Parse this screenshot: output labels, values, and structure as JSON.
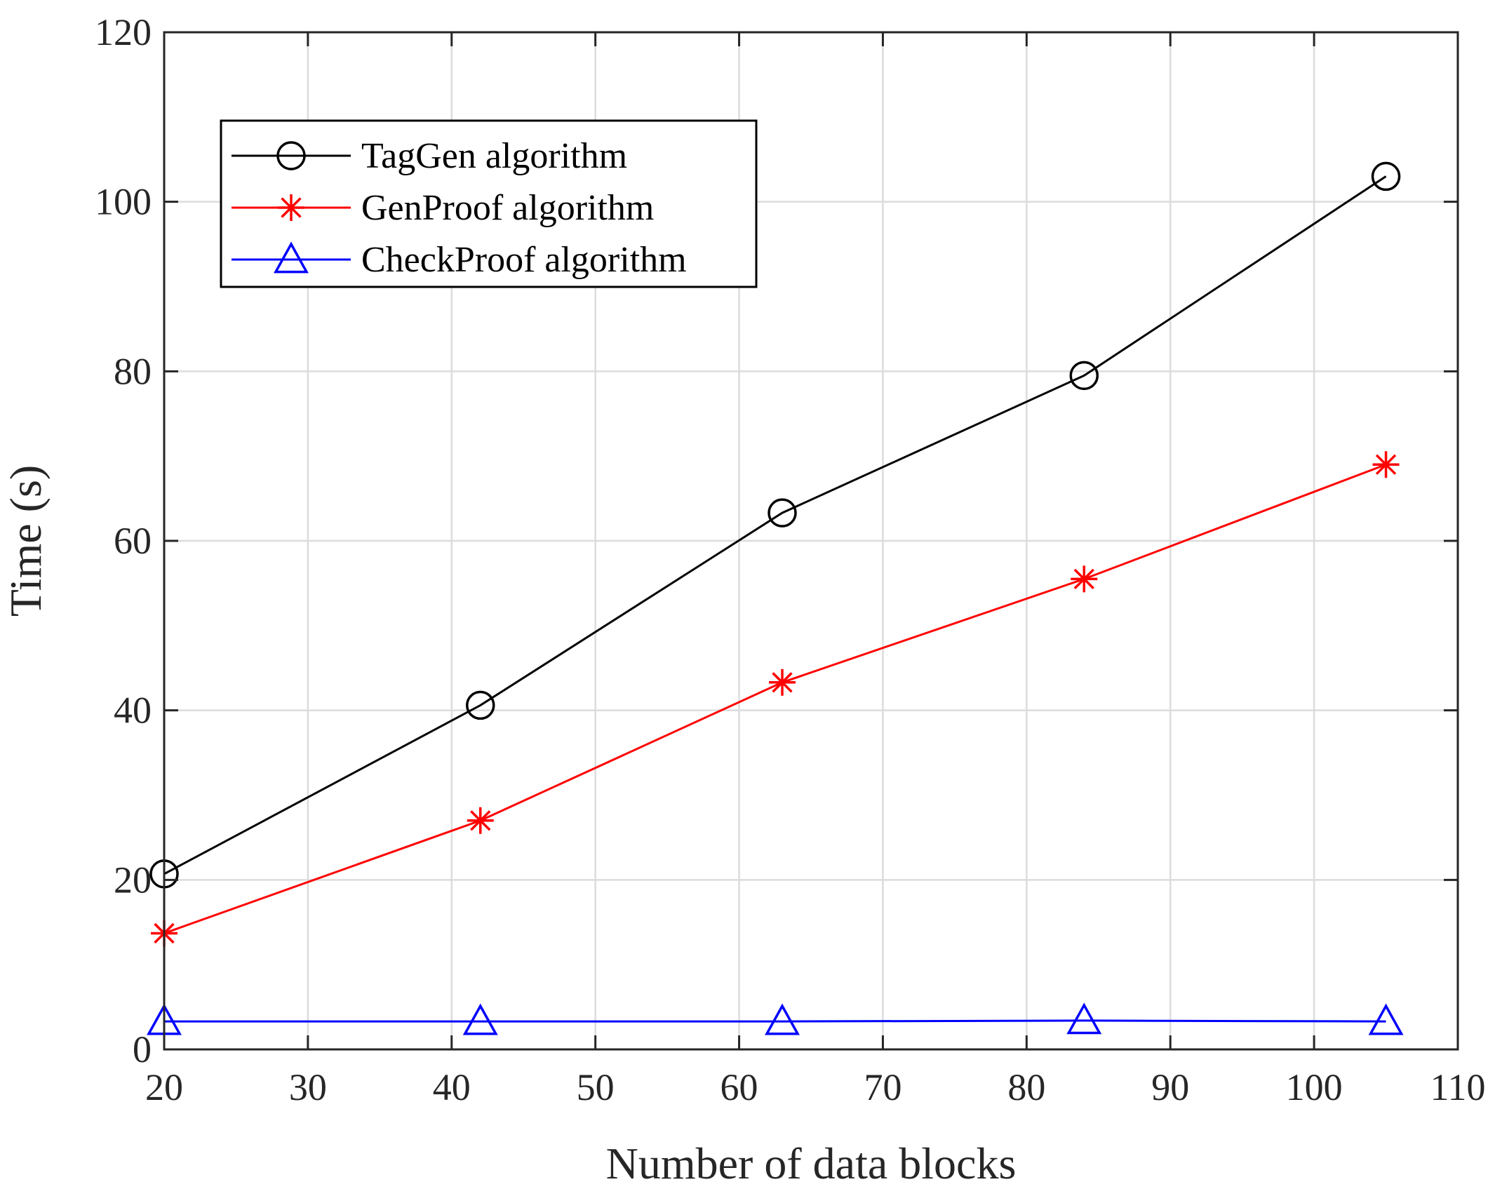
{
  "chart_data": {
    "type": "line",
    "title": "",
    "xlabel": "Number of data blocks",
    "ylabel": "Time (s)",
    "xlim": [
      20,
      110
    ],
    "ylim": [
      0,
      120
    ],
    "xticks": [
      20,
      30,
      40,
      50,
      60,
      70,
      80,
      90,
      100,
      110
    ],
    "yticks": [
      0,
      20,
      40,
      60,
      80,
      100,
      120
    ],
    "grid": true,
    "legend_position": "top-left",
    "x": [
      20,
      42,
      63,
      84,
      105
    ],
    "series": [
      {
        "name": "TagGen algorithm",
        "color": "#000000",
        "marker": "circle",
        "values": [
          20.7,
          40.6,
          63.3,
          79.5,
          103
        ]
      },
      {
        "name": "GenProof algorithm",
        "color": "#ff0000",
        "marker": "asterisk",
        "values": [
          13.7,
          27.0,
          43.3,
          55.5,
          69.0
        ]
      },
      {
        "name": "CheckProof algorithm",
        "color": "#0000ff",
        "marker": "triangle",
        "values": [
          3.3,
          3.3,
          3.3,
          3.4,
          3.3
        ]
      }
    ]
  }
}
